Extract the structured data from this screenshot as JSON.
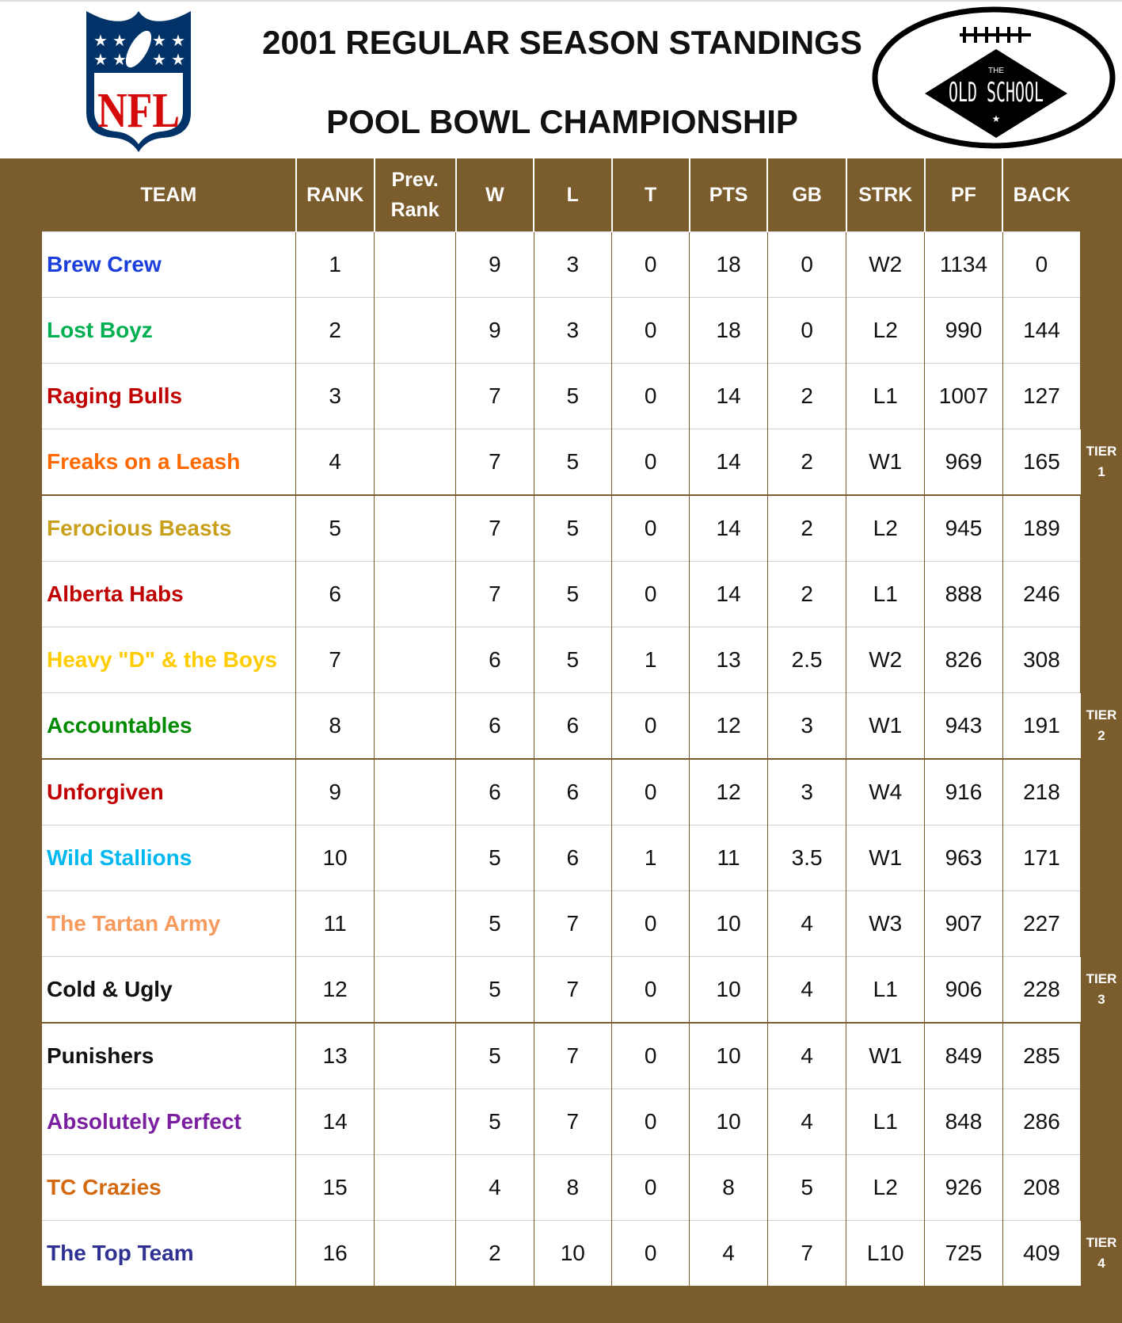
{
  "header": {
    "title_line1": "2001 REGULAR SEASON STANDINGS",
    "title_line2": "POOL BOWL CHAMPIONSHIP",
    "left_logo": {
      "name": "nfl-logo",
      "text": "NFL",
      "colors": {
        "navy": "#013369",
        "red": "#d50a0a"
      }
    },
    "right_logo": {
      "name": "old-school-logo",
      "text_small": "THE",
      "text_main": "OLD SCHOOL"
    }
  },
  "colors": {
    "board": "#7a5c2d",
    "cell": "#ffffff"
  },
  "columns": [
    "TEAM",
    "RANK",
    "Prev. Rank",
    "W",
    "L",
    "T",
    "PTS",
    "GB",
    "STRK",
    "PF",
    "BACK"
  ],
  "tiers": [
    {
      "label": "TIER",
      "number": "1"
    },
    {
      "label": "TIER",
      "number": "2"
    },
    {
      "label": "TIER",
      "number": "3"
    },
    {
      "label": "TIER",
      "number": "4"
    }
  ],
  "rows": [
    {
      "team": "Brew Crew",
      "color": "#1a3fdc",
      "rank": "1",
      "prev": "",
      "w": "9",
      "l": "3",
      "t": "0",
      "pts": "18",
      "gb": "0",
      "strk": "W2",
      "pf": "1134",
      "back": "0"
    },
    {
      "team": "Lost Boyz",
      "color": "#00b050",
      "rank": "2",
      "prev": "",
      "w": "9",
      "l": "3",
      "t": "0",
      "pts": "18",
      "gb": "0",
      "strk": "L2",
      "pf": "990",
      "back": "144"
    },
    {
      "team": "Raging Bulls",
      "color": "#c00000",
      "rank": "3",
      "prev": "",
      "w": "7",
      "l": "5",
      "t": "0",
      "pts": "14",
      "gb": "2",
      "strk": "L1",
      "pf": "1007",
      "back": "127"
    },
    {
      "team": "Freaks on a Leash",
      "color": "#ff6a00",
      "rank": "4",
      "prev": "",
      "w": "7",
      "l": "5",
      "t": "0",
      "pts": "14",
      "gb": "2",
      "strk": "W1",
      "pf": "969",
      "back": "165"
    },
    {
      "team": "Ferocious Beasts",
      "color": "#c9a01c",
      "rank": "5",
      "prev": "",
      "w": "7",
      "l": "5",
      "t": "0",
      "pts": "14",
      "gb": "2",
      "strk": "L2",
      "pf": "945",
      "back": "189"
    },
    {
      "team": "Alberta Habs",
      "color": "#c00000",
      "rank": "6",
      "prev": "",
      "w": "7",
      "l": "5",
      "t": "0",
      "pts": "14",
      "gb": "2",
      "strk": "L1",
      "pf": "888",
      "back": "246"
    },
    {
      "team": "Heavy \"D\" & the Boys",
      "color": "#ffcc00",
      "rank": "7",
      "prev": "",
      "w": "6",
      "l": "5",
      "t": "1",
      "pts": "13",
      "gb": "2.5",
      "strk": "W2",
      "pf": "826",
      "back": "308"
    },
    {
      "team": "Accountables",
      "color": "#008a00",
      "rank": "8",
      "prev": "",
      "w": "6",
      "l": "6",
      "t": "0",
      "pts": "12",
      "gb": "3",
      "strk": "W1",
      "pf": "943",
      "back": "191"
    },
    {
      "team": "Unforgiven",
      "color": "#c00000",
      "rank": "9",
      "prev": "",
      "w": "6",
      "l": "6",
      "t": "0",
      "pts": "12",
      "gb": "3",
      "strk": "W4",
      "pf": "916",
      "back": "218"
    },
    {
      "team": "Wild Stallions",
      "color": "#00b8f0",
      "rank": "10",
      "prev": "",
      "w": "5",
      "l": "6",
      "t": "1",
      "pts": "11",
      "gb": "3.5",
      "strk": "W1",
      "pf": "963",
      "back": "171"
    },
    {
      "team": "The Tartan Army",
      "color": "#f79a5e",
      "rank": "11",
      "prev": "",
      "w": "5",
      "l": "7",
      "t": "0",
      "pts": "10",
      "gb": "4",
      "strk": "W3",
      "pf": "907",
      "back": "227"
    },
    {
      "team": "Cold & Ugly",
      "color": "#111111",
      "rank": "12",
      "prev": "",
      "w": "5",
      "l": "7",
      "t": "0",
      "pts": "10",
      "gb": "4",
      "strk": "L1",
      "pf": "906",
      "back": "228"
    },
    {
      "team": "Punishers",
      "color": "#111111",
      "rank": "13",
      "prev": "",
      "w": "5",
      "l": "7",
      "t": "0",
      "pts": "10",
      "gb": "4",
      "strk": "W1",
      "pf": "849",
      "back": "285"
    },
    {
      "team": "Absolutely Perfect",
      "color": "#7a1fa0",
      "rank": "14",
      "prev": "",
      "w": "5",
      "l": "7",
      "t": "0",
      "pts": "10",
      "gb": "4",
      "strk": "L1",
      "pf": "848",
      "back": "286"
    },
    {
      "team": "TC Crazies",
      "color": "#d2690e",
      "rank": "15",
      "prev": "",
      "w": "4",
      "l": "8",
      "t": "0",
      "pts": "8",
      "gb": "5",
      "strk": "L2",
      "pf": "926",
      "back": "208"
    },
    {
      "team": "The Top Team",
      "color": "#2e3192",
      "rank": "16",
      "prev": "",
      "w": "2",
      "l": "10",
      "t": "0",
      "pts": "4",
      "gb": "7",
      "strk": "L10",
      "pf": "725",
      "back": "409"
    }
  ]
}
